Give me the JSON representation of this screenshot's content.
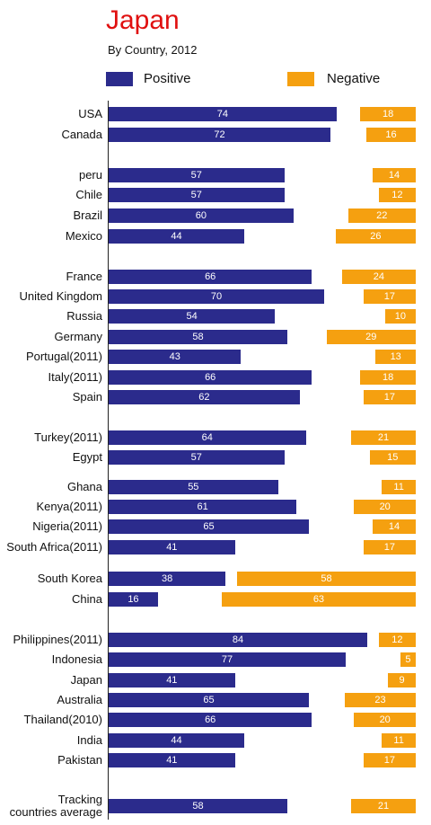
{
  "chart_data": {
    "type": "diverging-bar",
    "title": "Japan",
    "subtitle": "By Country, 2012",
    "categories": [
      "USA",
      "Canada",
      "peru",
      "Chile",
      "Brazil",
      "Mexico",
      "France",
      "United Kingdom",
      "Russia",
      "Germany",
      "Portugal(2011)",
      "Italy(2011)",
      "Spain",
      "Turkey(2011)",
      "Egypt",
      "Ghana",
      "Kenya(2011)",
      "Nigeria(2011)",
      "South Africa(2011)",
      "South Korea",
      "China",
      "Philippines(2011)",
      "Indonesia",
      "Japan",
      "Australia",
      "Thailand(2010)",
      "India",
      "Pakistan",
      "Tracking countries average"
    ],
    "series": [
      {
        "name": "Positive",
        "color": "#2b2b8c",
        "values": [
          74,
          72,
          57,
          57,
          60,
          44,
          66,
          70,
          54,
          58,
          43,
          66,
          62,
          64,
          57,
          55,
          61,
          65,
          41,
          38,
          16,
          84,
          77,
          41,
          65,
          66,
          44,
          41,
          58
        ]
      },
      {
        "name": "Negative",
        "color": "#f5a010",
        "values": [
          18,
          16,
          14,
          12,
          22,
          26,
          24,
          17,
          10,
          29,
          13,
          18,
          17,
          21,
          15,
          11,
          20,
          14,
          17,
          58,
          63,
          12,
          5,
          9,
          23,
          20,
          11,
          17,
          21
        ]
      }
    ]
  }
}
